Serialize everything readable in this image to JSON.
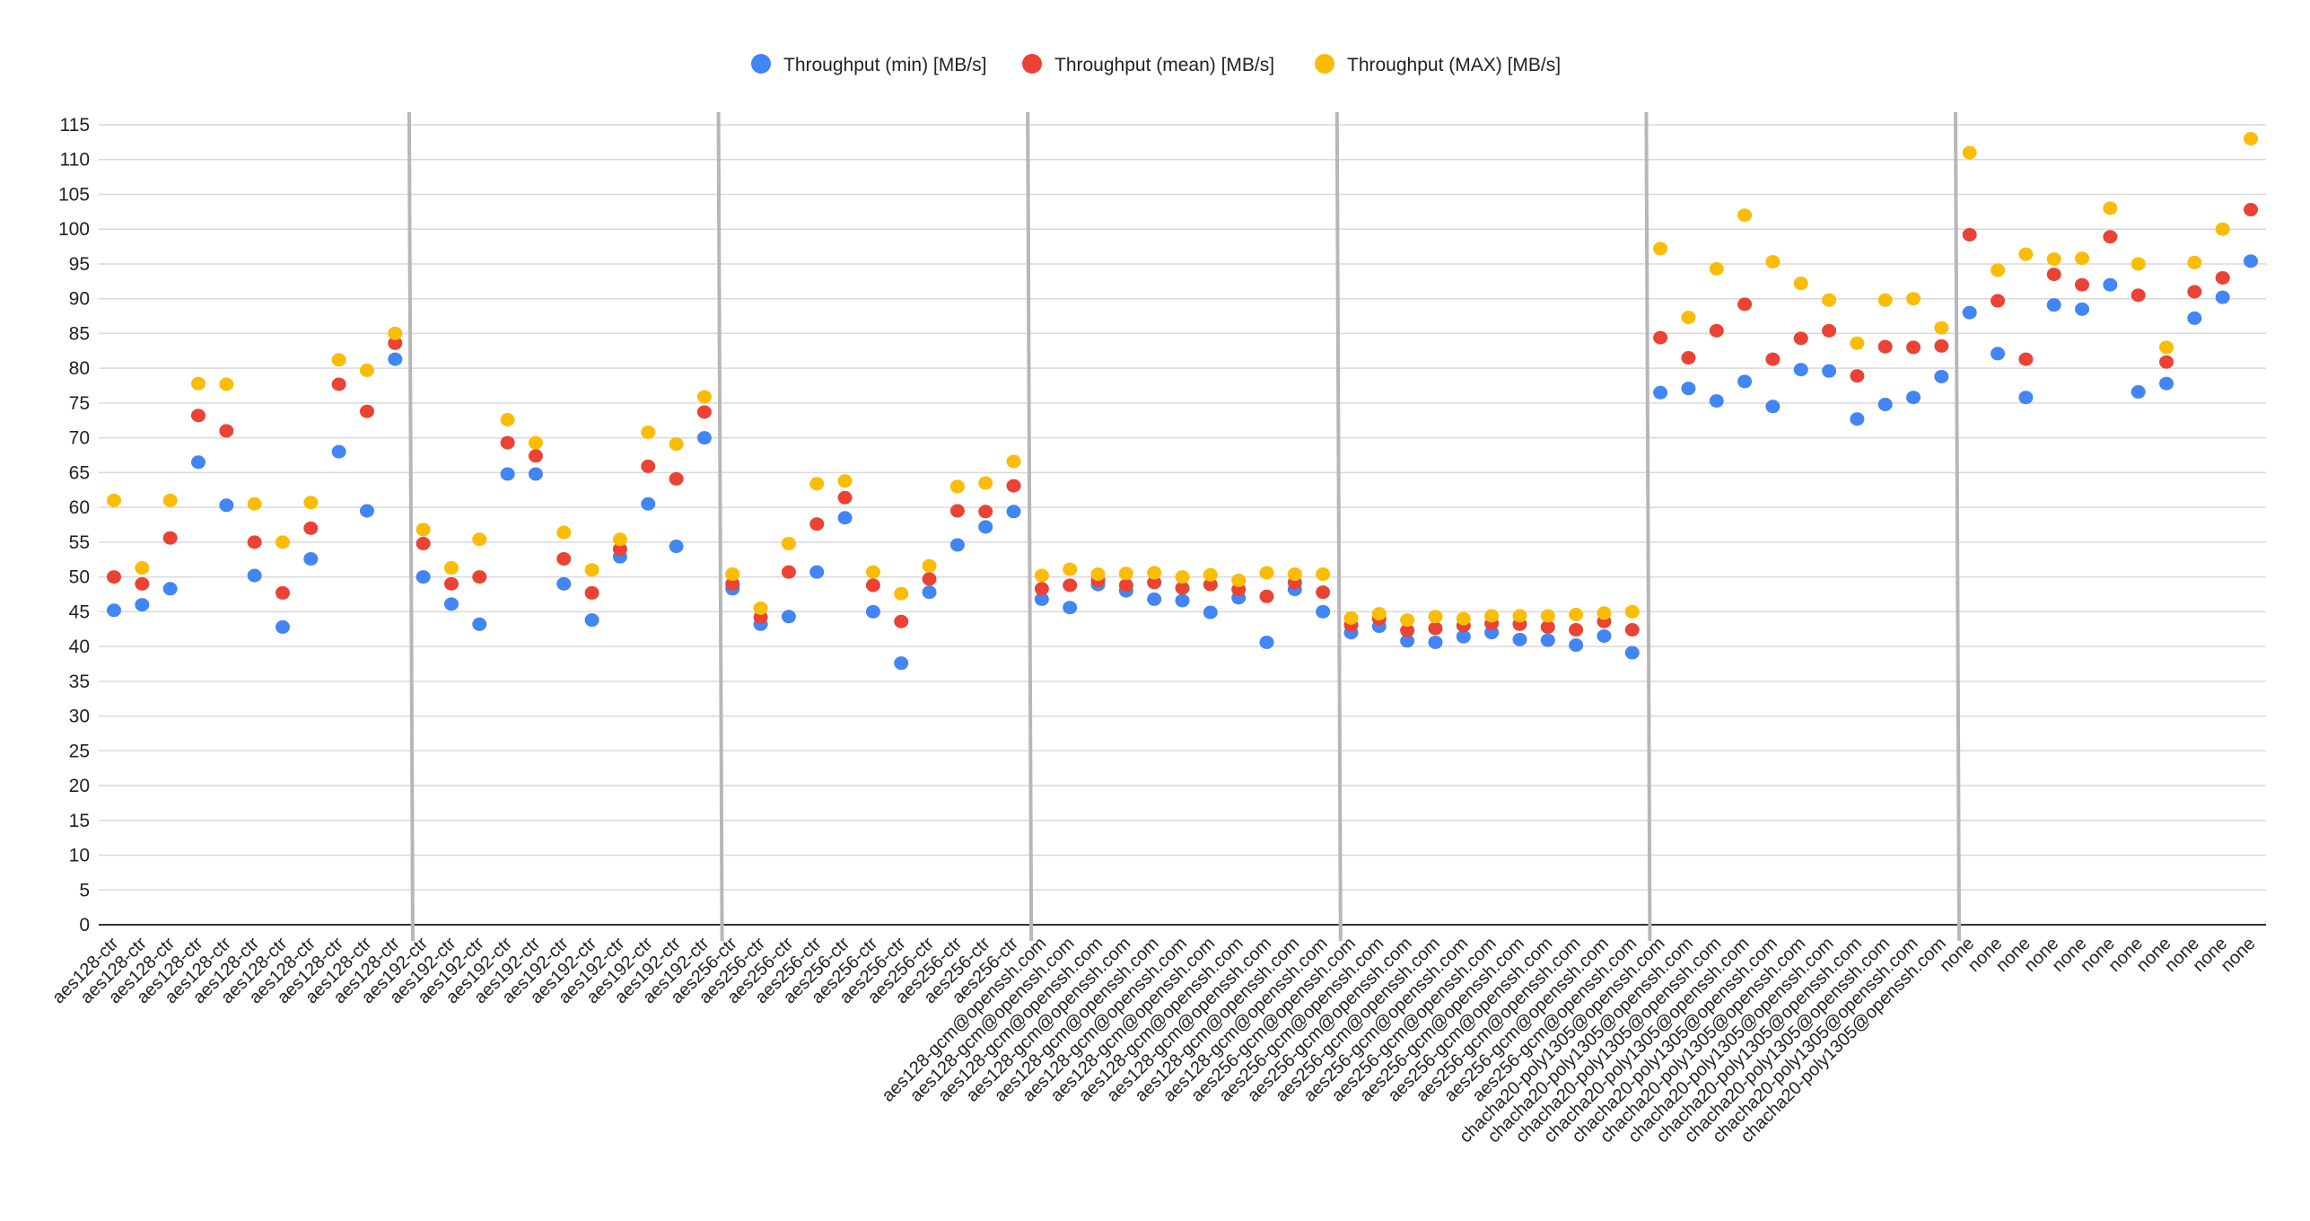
{
  "chart_data": {
    "type": "scatter",
    "title": "",
    "xlabel": "",
    "ylabel": "",
    "ylim": [
      0,
      115
    ],
    "ytick_step": 5,
    "grid": true,
    "legend_position": "top",
    "group_dividers": true,
    "categories": [
      "aes128-ctr",
      "aes128-ctr",
      "aes128-ctr",
      "aes128-ctr",
      "aes128-ctr",
      "aes128-ctr",
      "aes128-ctr",
      "aes128-ctr",
      "aes128-ctr",
      "aes128-ctr",
      "aes128-ctr",
      "aes192-ctr",
      "aes192-ctr",
      "aes192-ctr",
      "aes192-ctr",
      "aes192-ctr",
      "aes192-ctr",
      "aes192-ctr",
      "aes192-ctr",
      "aes192-ctr",
      "aes192-ctr",
      "aes192-ctr",
      "aes256-ctr",
      "aes256-ctr",
      "aes256-ctr",
      "aes256-ctr",
      "aes256-ctr",
      "aes256-ctr",
      "aes256-ctr",
      "aes256-ctr",
      "aes256-ctr",
      "aes256-ctr",
      "aes256-ctr",
      "aes128-gcm@openssh.com",
      "aes128-gcm@openssh.com",
      "aes128-gcm@openssh.com",
      "aes128-gcm@openssh.com",
      "aes128-gcm@openssh.com",
      "aes128-gcm@openssh.com",
      "aes128-gcm@openssh.com",
      "aes128-gcm@openssh.com",
      "aes128-gcm@openssh.com",
      "aes128-gcm@openssh.com",
      "aes128-gcm@openssh.com",
      "aes256-gcm@openssh.com",
      "aes256-gcm@openssh.com",
      "aes256-gcm@openssh.com",
      "aes256-gcm@openssh.com",
      "aes256-gcm@openssh.com",
      "aes256-gcm@openssh.com",
      "aes256-gcm@openssh.com",
      "aes256-gcm@openssh.com",
      "aes256-gcm@openssh.com",
      "aes256-gcm@openssh.com",
      "aes256-gcm@openssh.com",
      "chacha20-poly1305@openssh.com",
      "chacha20-poly1305@openssh.com",
      "chacha20-poly1305@openssh.com",
      "chacha20-poly1305@openssh.com",
      "chacha20-poly1305@openssh.com",
      "chacha20-poly1305@openssh.com",
      "chacha20-poly1305@openssh.com",
      "chacha20-poly1305@openssh.com",
      "chacha20-poly1305@openssh.com",
      "chacha20-poly1305@openssh.com",
      "chacha20-poly1305@openssh.com",
      "none",
      "none",
      "none",
      "none",
      "none",
      "none",
      "none",
      "none",
      "none",
      "none",
      "none"
    ],
    "series": [
      {
        "name": "Throughput (min) [MB/s]",
        "color": "#4285f4",
        "values": [
          45.2,
          46,
          48.3,
          66.5,
          60.3,
          50.2,
          42.8,
          52.6,
          68,
          59.5,
          81.3,
          50,
          46.1,
          43.2,
          64.8,
          64.8,
          49,
          43.8,
          52.9,
          60.5,
          54.4,
          70,
          48.3,
          43.2,
          44.3,
          50.7,
          58.5,
          45,
          37.6,
          47.8,
          54.6,
          57.2,
          59.4,
          46.8,
          45.6,
          48.9,
          48,
          46.8,
          46.6,
          44.9,
          47,
          40.6,
          48.2,
          45,
          42,
          42.9,
          40.8,
          40.6,
          41.4,
          42,
          41,
          40.9,
          40.2,
          41.5,
          39.1,
          76.5,
          77.1,
          75.3,
          78.1,
          74.5,
          79.8,
          79.6,
          72.7,
          74.8,
          75.8,
          78.8,
          88,
          82.1,
          75.8,
          89.1,
          88.5,
          92,
          76.6,
          77.8,
          87.2,
          90.2,
          95.4
        ]
      },
      {
        "name": "Throughput (mean) [MB/s]",
        "color": "#ea4335",
        "values": [
          50,
          49,
          55.6,
          73.2,
          71,
          55,
          47.7,
          57,
          77.7,
          73.8,
          83.6,
          54.8,
          49,
          50,
          69.3,
          67.4,
          52.6,
          47.7,
          54,
          65.9,
          64.1,
          73.7,
          49,
          44.2,
          50.7,
          57.6,
          61.4,
          48.8,
          43.6,
          49.7,
          59.5,
          59.4,
          63.1,
          48.3,
          48.8,
          49.5,
          48.8,
          49.2,
          48.4,
          48.9,
          48.2,
          47.2,
          49.2,
          47.8,
          43.1,
          44,
          42.3,
          42.6,
          43,
          43.3,
          43.2,
          42.8,
          42.4,
          43.6,
          42.4,
          84.4,
          81.5,
          85.4,
          89.2,
          81.3,
          84.3,
          85.4,
          78.9,
          83.1,
          83,
          83.2,
          99.2,
          89.7,
          81.3,
          93.5,
          92,
          98.9,
          90.5,
          80.9,
          91,
          93,
          102.8
        ]
      },
      {
        "name": "Throughput (MAX) [MB/s]",
        "color": "#fbbc04",
        "values": [
          61,
          51.3,
          61,
          77.8,
          77.7,
          60.5,
          55,
          60.7,
          81.2,
          79.7,
          85,
          56.8,
          51.3,
          55.4,
          72.6,
          69.3,
          56.4,
          51,
          55.4,
          70.8,
          69.1,
          75.9,
          50.4,
          45.5,
          54.8,
          63.4,
          63.8,
          50.7,
          47.6,
          51.6,
          63,
          63.5,
          66.6,
          50.2,
          51.1,
          50.4,
          50.5,
          50.6,
          50,
          50.3,
          49.5,
          50.6,
          50.4,
          50.4,
          44.1,
          44.7,
          43.8,
          44.3,
          44,
          44.4,
          44.4,
          44.4,
          44.6,
          44.8,
          45,
          97.2,
          87.3,
          94.3,
          102,
          95.3,
          92.2,
          89.8,
          83.6,
          89.8,
          90,
          85.8,
          111,
          94.1,
          96.4,
          95.7,
          95.8,
          103,
          95,
          83,
          95.2,
          100,
          113
        ]
      }
    ]
  }
}
